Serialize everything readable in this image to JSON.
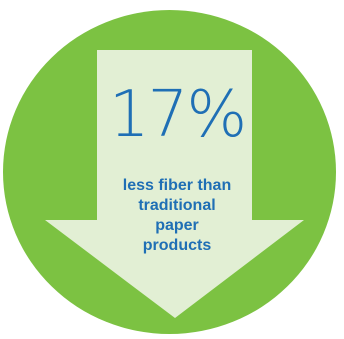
{
  "stat": {
    "value": "17%",
    "caption_lines": [
      "less fiber than",
      "traditional",
      "paper",
      "products"
    ]
  },
  "colors": {
    "circle": "#7cc242",
    "arrow": "#e2efd4",
    "text": "#1f6fb5"
  },
  "icons": {
    "arrow": "down-arrow-icon"
  }
}
